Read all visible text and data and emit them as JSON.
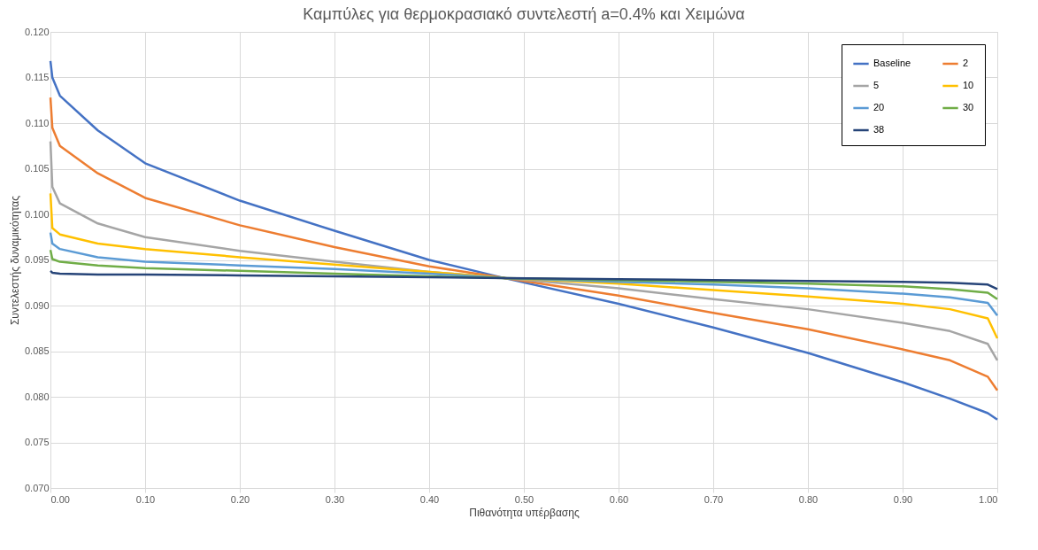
{
  "chart_data": {
    "type": "line",
    "title": "Καμπύλες για θερμοκρασιακό συντελεστή a=0.4% και Χειμώνα",
    "xlabel": "Πιθανότητα υπέρβασης",
    "ylabel": "Συντελεστής δυναμικότητας",
    "x": [
      0,
      0.002,
      0.01,
      0.05,
      0.1,
      0.2,
      0.3,
      0.4,
      0.48,
      0.6,
      0.7,
      0.8,
      0.9,
      0.95,
      0.99,
      1.0
    ],
    "series": [
      {
        "name": "Baseline",
        "color": "#4472c4",
        "values": [
          0.1168,
          0.115,
          0.113,
          0.1092,
          0.1056,
          0.1015,
          0.0982,
          0.095,
          0.093,
          0.0902,
          0.0876,
          0.0848,
          0.0816,
          0.0798,
          0.0782,
          0.0775
        ]
      },
      {
        "name": "2",
        "color": "#ed7d31",
        "values": [
          0.1128,
          0.1095,
          0.1075,
          0.1045,
          0.1018,
          0.0988,
          0.0964,
          0.0943,
          0.093,
          0.0911,
          0.0892,
          0.0874,
          0.0852,
          0.084,
          0.0822,
          0.0807
        ]
      },
      {
        "name": "5",
        "color": "#a5a5a5",
        "values": [
          0.108,
          0.103,
          0.1012,
          0.099,
          0.0975,
          0.096,
          0.0948,
          0.0937,
          0.093,
          0.0919,
          0.0907,
          0.0896,
          0.0881,
          0.0872,
          0.0858,
          0.084
        ]
      },
      {
        "name": "10",
        "color": "#ffc000",
        "values": [
          0.1023,
          0.0985,
          0.0978,
          0.0968,
          0.0962,
          0.0953,
          0.0945,
          0.0937,
          0.093,
          0.0924,
          0.0917,
          0.091,
          0.0902,
          0.0896,
          0.0886,
          0.0864
        ]
      },
      {
        "name": "20",
        "color": "#5b9bd5",
        "values": [
          0.098,
          0.0968,
          0.0962,
          0.0953,
          0.0948,
          0.0944,
          0.094,
          0.0935,
          0.093,
          0.0926,
          0.0923,
          0.0919,
          0.0913,
          0.0909,
          0.0903,
          0.0889
        ]
      },
      {
        "name": "30",
        "color": "#70ad47",
        "values": [
          0.0961,
          0.0951,
          0.0948,
          0.0944,
          0.0941,
          0.0938,
          0.0935,
          0.0932,
          0.093,
          0.0928,
          0.0926,
          0.0924,
          0.0921,
          0.0918,
          0.0914,
          0.0907
        ]
      },
      {
        "name": "38",
        "color": "#264478",
        "values": [
          0.0938,
          0.0936,
          0.0935,
          0.0934,
          0.0934,
          0.0933,
          0.0932,
          0.0931,
          0.093,
          0.0929,
          0.0928,
          0.0927,
          0.0926,
          0.0925,
          0.0923,
          0.0918
        ]
      }
    ],
    "xlim": [
      0,
      1.0
    ],
    "xticks": [
      {
        "value": 0,
        "label": "0.00"
      },
      {
        "value": 0.1,
        "label": "0.10"
      },
      {
        "value": 0.2,
        "label": "0.20"
      },
      {
        "value": 0.3,
        "label": "0.30"
      },
      {
        "value": 0.4,
        "label": "0.40"
      },
      {
        "value": 0.5,
        "label": "0.50"
      },
      {
        "value": 0.6,
        "label": "0.60"
      },
      {
        "value": 0.7,
        "label": "0.70"
      },
      {
        "value": 0.8,
        "label": "0.80"
      },
      {
        "value": 0.9,
        "label": "0.90"
      },
      {
        "value": 1.0,
        "label": "1.00"
      }
    ],
    "ylim": [
      0.07,
      0.12
    ],
    "yticks": [
      {
        "value": 0.07,
        "label": "0.070"
      },
      {
        "value": 0.075,
        "label": "0.075"
      },
      {
        "value": 0.08,
        "label": "0.080"
      },
      {
        "value": 0.085,
        "label": "0.085"
      },
      {
        "value": 0.09,
        "label": "0.090"
      },
      {
        "value": 0.095,
        "label": "0.095"
      },
      {
        "value": 0.1,
        "label": "0.100"
      },
      {
        "value": 0.105,
        "label": "0.105"
      },
      {
        "value": 0.11,
        "label": "0.110"
      },
      {
        "value": 0.115,
        "label": "0.115"
      },
      {
        "value": 0.12,
        "label": "0.120"
      }
    ],
    "grid": true,
    "legend": "top right",
    "marker": "none",
    "line_style": "solid"
  }
}
